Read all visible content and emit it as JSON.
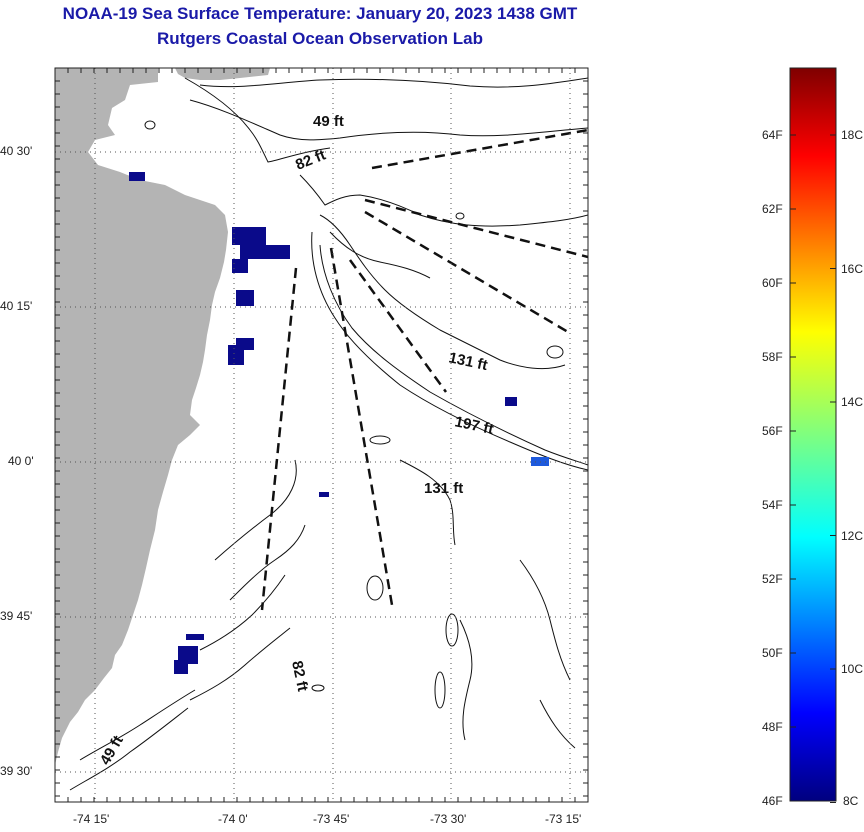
{
  "title_line1": "NOAA-19 Sea Surface Temperature:  January 20, 2023 1438 GMT",
  "title_line2": "Rutgers Coastal Ocean Observation Lab",
  "map": {
    "lat_labels": [
      "40 30'",
      "40 15'",
      "40 0'",
      "39 45'",
      "39 30'"
    ],
    "lon_labels": [
      "-74 15'",
      "-74 0'",
      "-73 45'",
      "-73 30'",
      "-73 15'"
    ],
    "depth_labels": [
      "49 ft",
      "82 ft",
      "131 ft",
      "197 ft",
      "131 ft",
      "82 ft",
      "49 ft"
    ],
    "colors": {
      "land": "#b4b4b4",
      "grid": "#555555",
      "sst_cold": "#0a0a8a",
      "sst_blue": "#1e5adc"
    }
  },
  "colorbar": {
    "f_labels": [
      "64F",
      "62F",
      "60F",
      "58F",
      "56F",
      "54F",
      "52F",
      "50F",
      "48F",
      "46F"
    ],
    "c_labels": [
      "18C",
      "16C",
      "14C",
      "12C",
      "10C",
      "8C"
    ]
  }
}
